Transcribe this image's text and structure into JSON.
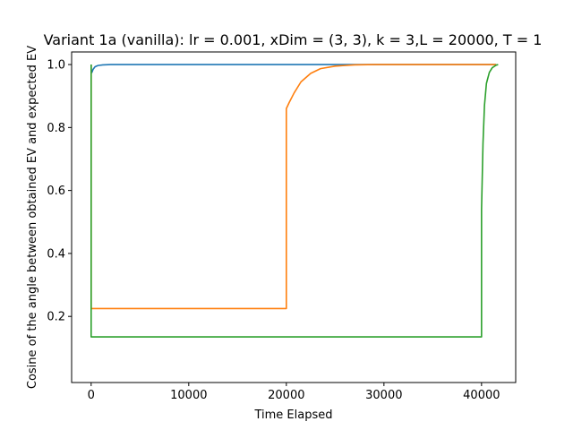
{
  "chart_data": {
    "type": "line",
    "title": "Variant 1a (vanilla): lr = 0.001, xDim = (3, 3), k = 3,L = 20000, T = 1",
    "xlabel": "Time Elapsed",
    "ylabel": "Cosine of the angle between obtained EV and expected EV",
    "xlim": [
      -2000,
      43500
    ],
    "ylim": [
      -0.01,
      1.04
    ],
    "xticks": [
      0,
      10000,
      20000,
      30000,
      40000
    ],
    "yticks": [
      0.2,
      0.4,
      0.6,
      0.8,
      1.0
    ],
    "xtick_labels": [
      "0",
      "10000",
      "20000",
      "30000",
      "40000"
    ],
    "ytick_labels": [
      "0.2",
      "0.4",
      "0.6",
      "0.8",
      "1.0"
    ],
    "grid": false,
    "legend": false,
    "series": [
      {
        "color": "#1f77b4",
        "points": [
          [
            0,
            1.0
          ],
          [
            0,
            0.99
          ],
          [
            20,
            0.975
          ],
          [
            80,
            0.975
          ],
          [
            200,
            0.985
          ],
          [
            400,
            0.993
          ],
          [
            700,
            0.997
          ],
          [
            1200,
            0.999
          ],
          [
            2000,
            1.0
          ],
          [
            41500,
            1.0
          ]
        ]
      },
      {
        "color": "#ff7f0e",
        "points": [
          [
            0,
            1.0
          ],
          [
            0,
            0.225
          ],
          [
            20000,
            0.225
          ],
          [
            20000,
            0.86
          ],
          [
            20300,
            0.88
          ],
          [
            20800,
            0.91
          ],
          [
            21500,
            0.945
          ],
          [
            22500,
            0.972
          ],
          [
            23500,
            0.987
          ],
          [
            25000,
            0.995
          ],
          [
            27000,
            0.999
          ],
          [
            29000,
            1.0
          ],
          [
            41500,
            1.0
          ]
        ]
      },
      {
        "color": "#2ca02c",
        "points": [
          [
            0,
            1.0
          ],
          [
            0,
            0.135
          ],
          [
            40000,
            0.135
          ],
          [
            40000,
            0.54
          ],
          [
            40150,
            0.75
          ],
          [
            40300,
            0.87
          ],
          [
            40500,
            0.94
          ],
          [
            40800,
            0.975
          ],
          [
            41100,
            0.99
          ],
          [
            41500,
            0.998
          ],
          [
            41700,
            1.0
          ]
        ]
      }
    ]
  }
}
